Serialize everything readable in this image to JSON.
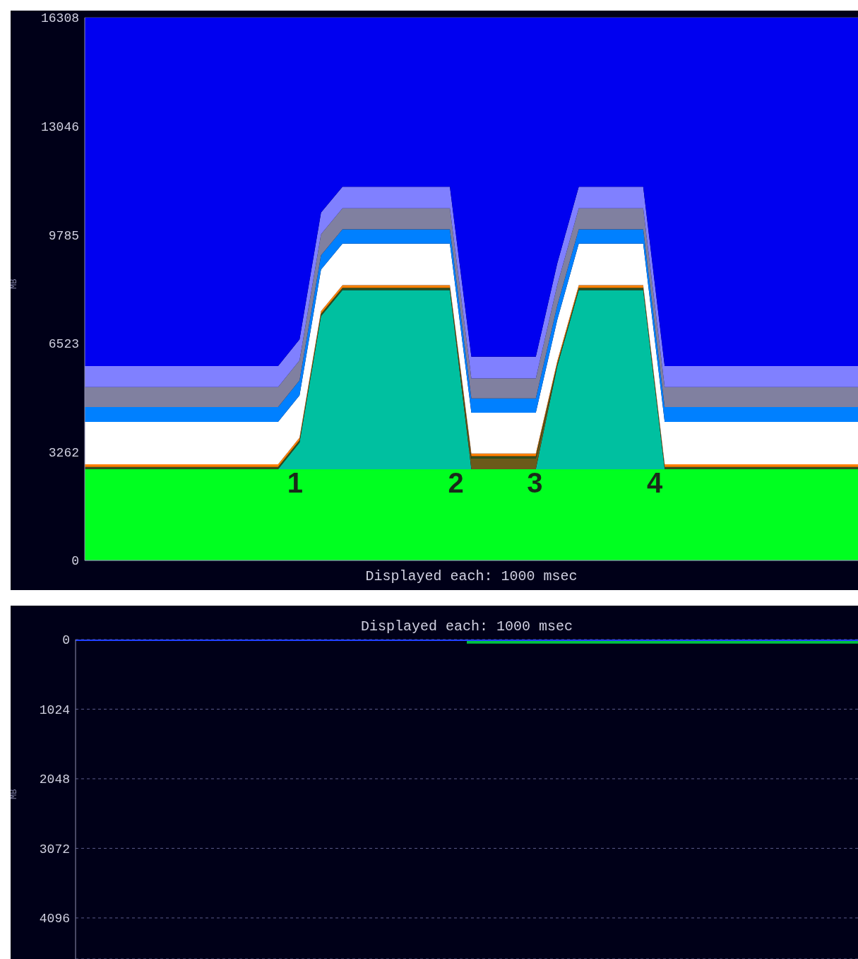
{
  "chart_data": [
    {
      "type": "area",
      "stacked": true,
      "xlabel": "Displayed each: 1000 msec",
      "ylabel": "MB",
      "tick_labels": "y",
      "grid": "y",
      "categories": [
        null,
        null,
        null,
        null,
        null,
        null,
        null,
        null,
        null,
        null,
        null,
        null,
        null,
        null,
        null,
        null,
        null,
        null,
        null,
        null,
        null,
        null,
        null,
        null,
        null,
        null,
        null,
        null,
        null,
        null,
        null,
        null,
        null,
        null,
        null,
        null,
        null
      ],
      "ylim": [
        0,
        16308
      ],
      "yticks": [
        0,
        3262,
        6523,
        9785,
        13046,
        16308
      ],
      "annotations": [
        "1",
        "2",
        "3",
        "4"
      ],
      "series": [
        {
          "color": "#00ff20",
          "values": [
            2740,
            2740,
            2740,
            2740,
            2740,
            2740,
            2740,
            2740,
            2740,
            2740,
            2740,
            2740,
            2740,
            2740,
            2740,
            2740,
            2740,
            2740,
            2740,
            2740,
            2740,
            2740,
            2740,
            2740,
            2740,
            2740,
            2740,
            2740,
            2740,
            2740,
            2740,
            2740,
            2740,
            2740,
            2740,
            2740,
            2740
          ]
        },
        {
          "color": "#00c0a0",
          "values": [
            0,
            0,
            0,
            0,
            0,
            0,
            0,
            0,
            0,
            0,
            800,
            4600,
            5380,
            5380,
            5380,
            5380,
            5380,
            5380,
            0,
            0,
            0,
            0,
            3100,
            5380,
            5380,
            5380,
            5380,
            0,
            0,
            0,
            0,
            0,
            0,
            0,
            0,
            0,
            0
          ]
        },
        {
          "color": "#6b5a1a",
          "values": [
            null,
            null,
            null,
            null,
            null,
            null,
            null,
            null,
            null,
            null,
            null,
            null,
            null,
            null,
            null,
            null,
            null,
            0,
            320,
            320,
            320,
            320,
            0,
            null,
            null,
            null,
            null,
            null,
            null,
            null,
            null,
            null,
            null,
            null,
            null,
            null,
            null
          ]
        },
        {
          "color": "#2f4f1f",
          "values": [
            70,
            70,
            70,
            70,
            70,
            70,
            70,
            70,
            70,
            70,
            70,
            70,
            70,
            70,
            70,
            70,
            70,
            70,
            70,
            70,
            70,
            70,
            70,
            70,
            70,
            70,
            70,
            70,
            70,
            70,
            70,
            70,
            70,
            70,
            70,
            70,
            70
          ]
        },
        {
          "color": "#ff8000",
          "values": [
            80,
            80,
            80,
            80,
            80,
            80,
            80,
            80,
            80,
            80,
            80,
            80,
            80,
            80,
            80,
            80,
            80,
            80,
            80,
            80,
            80,
            80,
            80,
            80,
            80,
            80,
            80,
            80,
            80,
            80,
            80,
            80,
            80,
            80,
            80,
            80,
            80
          ]
        },
        {
          "color": "#ffffff",
          "values": [
            1270,
            1270,
            1270,
            1270,
            1270,
            1270,
            1270,
            1270,
            1270,
            1270,
            1270,
            1250,
            1250,
            1250,
            1250,
            1250,
            1250,
            1250,
            1230,
            1230,
            1230,
            1230,
            1240,
            1250,
            1250,
            1250,
            1250,
            1270,
            1270,
            1270,
            1270,
            1270,
            1270,
            1270,
            1270,
            1270,
            1270
          ]
        },
        {
          "color": "#0080ff",
          "values": [
            450,
            450,
            450,
            450,
            450,
            450,
            450,
            450,
            450,
            450,
            450,
            430,
            430,
            430,
            430,
            430,
            430,
            430,
            430,
            430,
            430,
            430,
            430,
            430,
            430,
            430,
            430,
            450,
            450,
            450,
            450,
            450,
            450,
            450,
            450,
            450,
            450
          ]
        },
        {
          "color": "#8080a0",
          "values": [
            600,
            600,
            600,
            600,
            600,
            600,
            600,
            600,
            600,
            600,
            600,
            630,
            630,
            630,
            630,
            630,
            630,
            630,
            600,
            600,
            600,
            600,
            620,
            630,
            630,
            630,
            630,
            600,
            600,
            600,
            600,
            600,
            600,
            600,
            600,
            600,
            600
          ]
        },
        {
          "color": "#8080ff",
          "values": [
            630,
            630,
            630,
            630,
            630,
            630,
            630,
            630,
            630,
            630,
            630,
            650,
            650,
            650,
            650,
            650,
            650,
            650,
            650,
            650,
            650,
            650,
            650,
            650,
            650,
            650,
            650,
            630,
            630,
            630,
            630,
            630,
            630,
            630,
            630,
            630,
            630
          ]
        },
        {
          "color": "#0000f0",
          "values": [
            10470,
            10470,
            10470,
            10470,
            10470,
            10470,
            10470,
            10470,
            10470,
            10470,
            9670,
            5860,
            5080,
            5080,
            5080,
            5080,
            5080,
            5080,
            10190,
            10190,
            10190,
            10190,
            7380,
            5080,
            5080,
            5080,
            5080,
            10470,
            10470,
            10470,
            10470,
            10470,
            10470,
            10470,
            10470,
            10470,
            10470
          ]
        }
      ]
    },
    {
      "type": "line",
      "title": "Displayed each: 1000 msec",
      "ylabel": "MB",
      "tick_labels": "y",
      "grid": "y",
      "categories": [
        null,
        null,
        null,
        null,
        null,
        null,
        null,
        null,
        null,
        null,
        null,
        null,
        null,
        null,
        null,
        null,
        null,
        null,
        null,
        null,
        null,
        null,
        null,
        null,
        null,
        null,
        null,
        null,
        null,
        null,
        null,
        null,
        null,
        null,
        null,
        null,
        null
      ],
      "ylim": [
        4700,
        0
      ],
      "yticks": [
        0,
        1024,
        2048,
        3072,
        4096
      ],
      "series": [
        {
          "color": "#00c040",
          "values": [
            null,
            null,
            null,
            null,
            null,
            null,
            null,
            null,
            null,
            null,
            null,
            null,
            null,
            null,
            null,
            null,
            null,
            null,
            40,
            40,
            40,
            40,
            40,
            40,
            40,
            40,
            40,
            40,
            40,
            40,
            40,
            40,
            40,
            40,
            40,
            40,
            40
          ]
        },
        {
          "color": "#2040ff",
          "values": [
            0,
            0,
            0,
            0,
            0,
            0,
            0,
            0,
            0,
            0,
            0,
            0,
            0,
            0,
            0,
            0,
            0,
            0,
            0,
            0,
            0,
            0,
            0,
            0,
            0,
            0,
            0,
            0,
            0,
            0,
            0,
            0,
            0,
            0,
            0,
            0,
            0
          ]
        }
      ]
    }
  ]
}
